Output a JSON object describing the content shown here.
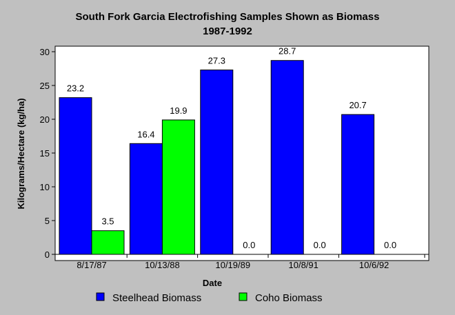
{
  "chart_data": {
    "type": "bar",
    "title": "South Fork Garcia Electrofishing Samples Shown as Biomass",
    "subtitle": "1987-1992",
    "xlabel": "Date",
    "ylabel": "Kilograms/Hectare (kg/ha)",
    "categories": [
      "8/17/87",
      "10/13/88",
      "10/19/89",
      "10/8/91",
      "10/6/92"
    ],
    "series": [
      {
        "name": "Steelhead Biomass",
        "color": "#0000ff",
        "values": [
          23.2,
          16.4,
          27.3,
          28.7,
          20.7
        ],
        "labels": [
          "23.2",
          "16.4",
          "27.3",
          "28.7",
          "20.7"
        ]
      },
      {
        "name": "Coho Biomass",
        "color": "#00ff00",
        "values": [
          3.5,
          19.9,
          0.0,
          0.0,
          0.0
        ],
        "labels": [
          "3.5",
          "19.9",
          "0.0",
          "0.0",
          "0.0"
        ]
      }
    ],
    "ylim": [
      0,
      30
    ],
    "yticks": [
      0,
      5,
      10,
      15,
      20,
      25,
      30
    ],
    "ytick_labels": [
      "0",
      "5",
      "10",
      "15",
      "20",
      "25",
      "30"
    ],
    "grid": false,
    "legend": "bottom",
    "background": "#c0c0c0",
    "plot_background": "#ffffff"
  }
}
